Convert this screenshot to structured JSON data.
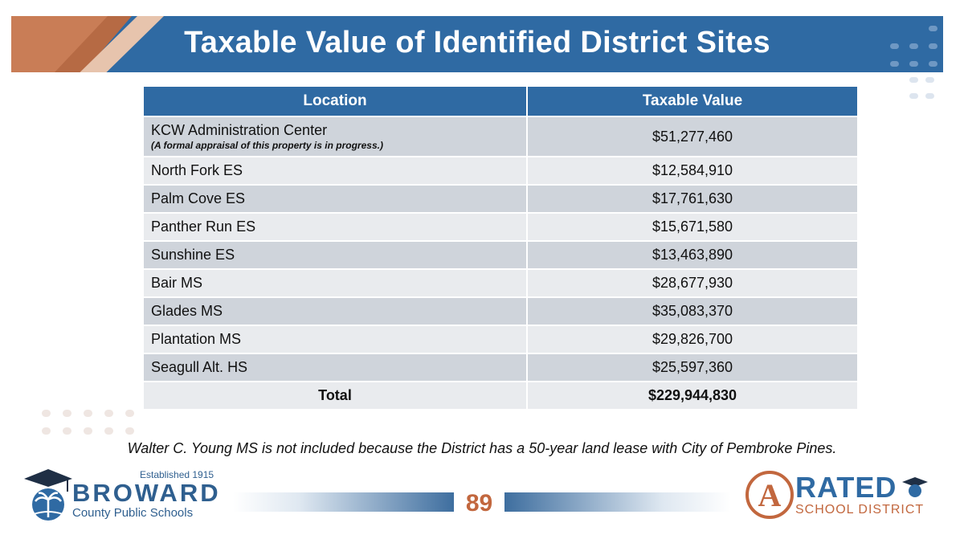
{
  "title": "Taxable Value of Identified District Sites",
  "table": {
    "headers": [
      "Location",
      "Taxable Value"
    ],
    "rows": [
      {
        "location": "KCW Administration Center",
        "note": "(A formal appraisal of this property is in progress.)",
        "value": "$51,277,460"
      },
      {
        "location": "North Fork ES",
        "value": "$12,584,910"
      },
      {
        "location": "Palm Cove ES",
        "value": "$17,761,630"
      },
      {
        "location": "Panther Run ES",
        "value": "$15,671,580"
      },
      {
        "location": "Sunshine ES",
        "value": "$13,463,890"
      },
      {
        "location": "Bair MS",
        "value": "$28,677,930"
      },
      {
        "location": "Glades MS",
        "value": "$35,083,370"
      },
      {
        "location": "Plantation MS",
        "value": "$29,826,700"
      },
      {
        "location": "Seagull Alt. HS",
        "value": "$25,597,360"
      }
    ],
    "total_label": "Total",
    "total_value": "$229,944,830"
  },
  "footnote": "Walter C. Young MS is not included because the District has a 50-year land lease with City of Pembroke Pines.",
  "footer": {
    "broward_established": "Established 1915",
    "broward_name": "BROWARD",
    "broward_sub": "County Public Schools",
    "page_number": "89",
    "rated_letter": "A",
    "rated_word": "RATED",
    "rated_sub": "SCHOOL DISTRICT"
  },
  "colors": {
    "primary": "#2f6aa3",
    "accent": "#c2673e"
  }
}
